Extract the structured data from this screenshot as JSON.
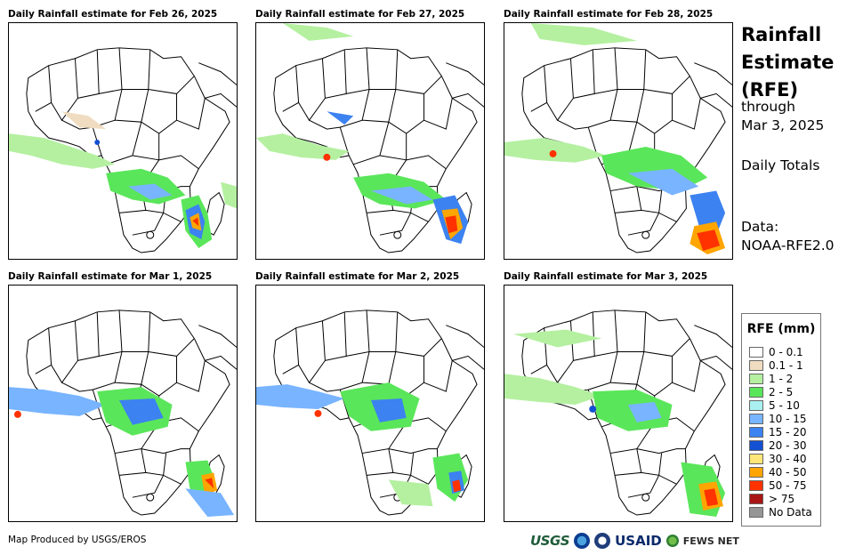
{
  "panels": [
    {
      "title": "Daily Rainfall estimate for Feb 26, 2025"
    },
    {
      "title": "Daily Rainfall estimate for Feb 27, 2025"
    },
    {
      "title": "Daily Rainfall estimate for Feb 28, 2025"
    },
    {
      "title": "Daily Rainfall estimate for Mar 1, 2025"
    },
    {
      "title": "Daily Rainfall estimate for Mar 2, 2025"
    },
    {
      "title": "Daily Rainfall estimate for Mar 3, 2025"
    }
  ],
  "side": {
    "title_line1": "Rainfall",
    "title_line2": "Estimate",
    "title_line3": "(RFE)",
    "through": "through",
    "date": "Mar 3, 2025",
    "totals": "Daily Totals",
    "data_label": "Data:",
    "data_source": "NOAA-RFE2.0"
  },
  "legend": {
    "title": "RFE (mm)",
    "items": [
      {
        "label": "0 - 0.1",
        "color": "#ffffff"
      },
      {
        "label": "0.1 - 1",
        "color": "#f0dcc0"
      },
      {
        "label": "1 - 2",
        "color": "#b4f0a0"
      },
      {
        "label": "2 - 5",
        "color": "#5ae65a"
      },
      {
        "label": "5 - 10",
        "color": "#aaf0f0"
      },
      {
        "label": "10 - 15",
        "color": "#78b4ff"
      },
      {
        "label": "15 - 20",
        "color": "#3c82f0"
      },
      {
        "label": "20 - 30",
        "color": "#1450d2"
      },
      {
        "label": "30 - 40",
        "color": "#ffe678"
      },
      {
        "label": "40 - 50",
        "color": "#ffa500"
      },
      {
        "label": "50 - 75",
        "color": "#ff3200"
      },
      {
        "label": "> 75",
        "color": "#aa1414"
      },
      {
        "label": "No Data",
        "color": "#969696"
      }
    ]
  },
  "credit": "Map Produced by USGS/EROS",
  "logos": {
    "usgs": "USGS",
    "usaid": "USAID",
    "fews": "FEWS NET"
  }
}
